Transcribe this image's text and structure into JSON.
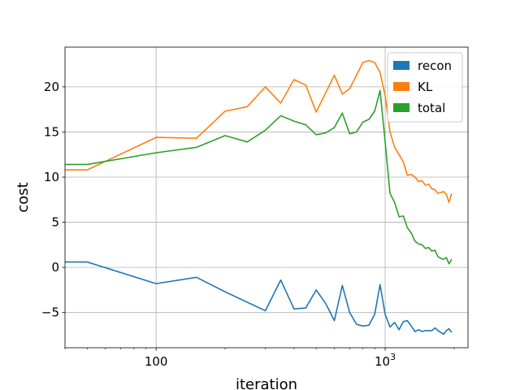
{
  "chart_data": {
    "type": "line",
    "xlabel": "iteration",
    "ylabel": "cost",
    "xscale": "log",
    "xlim": [
      40,
      2300
    ],
    "ylim": [
      -8.9,
      24.4
    ],
    "grid": true,
    "legend_position": "top-right",
    "x_ticks": [
      {
        "value": 100,
        "label": "100",
        "sup": ""
      },
      {
        "value": 1000,
        "label": "10",
        "sup": "3"
      }
    ],
    "y_ticks": [
      {
        "value": -5,
        "label": "−5"
      },
      {
        "value": 0,
        "label": "0"
      },
      {
        "value": 5,
        "label": "5"
      },
      {
        "value": 10,
        "label": "10"
      },
      {
        "value": 15,
        "label": "15"
      },
      {
        "value": 20,
        "label": "20"
      }
    ],
    "series": [
      {
        "name": "recon",
        "color": "#1f77b4",
        "points": [
          [
            40,
            0.6
          ],
          [
            50,
            0.6
          ],
          [
            100,
            -1.8
          ],
          [
            150,
            -1.1
          ],
          [
            200,
            -2.7
          ],
          [
            300,
            -4.8
          ],
          [
            350,
            -1.4
          ],
          [
            400,
            -4.6
          ],
          [
            450,
            -4.5
          ],
          [
            500,
            -2.5
          ],
          [
            550,
            -4.0
          ],
          [
            600,
            -5.9
          ],
          [
            650,
            -2.0
          ],
          [
            700,
            -5.0
          ],
          [
            750,
            -6.3
          ],
          [
            800,
            -6.5
          ],
          [
            850,
            -6.4
          ],
          [
            900,
            -5.2
          ],
          [
            950,
            -1.9
          ],
          [
            1000,
            -5.2
          ],
          [
            1050,
            -6.6
          ],
          [
            1100,
            -6.1
          ],
          [
            1150,
            -6.9
          ],
          [
            1200,
            -6.0
          ],
          [
            1250,
            -5.9
          ],
          [
            1300,
            -6.5
          ],
          [
            1350,
            -7.1
          ],
          [
            1400,
            -6.9
          ],
          [
            1450,
            -7.1
          ],
          [
            1500,
            -7.0
          ],
          [
            1600,
            -7.0
          ],
          [
            1650,
            -6.7
          ],
          [
            1700,
            -7.0
          ],
          [
            1800,
            -7.4
          ],
          [
            1850,
            -7.0
          ],
          [
            1900,
            -6.8
          ],
          [
            1950,
            -7.2
          ]
        ]
      },
      {
        "name": "KL",
        "color": "#ff7f0e",
        "points": [
          [
            40,
            10.8
          ],
          [
            50,
            10.8
          ],
          [
            100,
            14.4
          ],
          [
            150,
            14.3
          ],
          [
            200,
            17.3
          ],
          [
            250,
            17.8
          ],
          [
            300,
            20.0
          ],
          [
            350,
            18.2
          ],
          [
            400,
            20.8
          ],
          [
            450,
            20.2
          ],
          [
            500,
            17.2
          ],
          [
            600,
            21.3
          ],
          [
            650,
            19.2
          ],
          [
            700,
            19.8
          ],
          [
            800,
            22.7
          ],
          [
            850,
            22.9
          ],
          [
            900,
            22.7
          ],
          [
            950,
            21.6
          ],
          [
            1000,
            19.0
          ],
          [
            1050,
            15.0
          ],
          [
            1100,
            13.3
          ],
          [
            1150,
            12.5
          ],
          [
            1200,
            11.7
          ],
          [
            1250,
            10.2
          ],
          [
            1300,
            10.3
          ],
          [
            1350,
            10.0
          ],
          [
            1400,
            9.5
          ],
          [
            1450,
            9.6
          ],
          [
            1500,
            9.1
          ],
          [
            1550,
            9.2
          ],
          [
            1600,
            8.7
          ],
          [
            1650,
            8.6
          ],
          [
            1700,
            8.2
          ],
          [
            1750,
            8.3
          ],
          [
            1800,
            8.4
          ],
          [
            1850,
            8.1
          ],
          [
            1900,
            7.2
          ],
          [
            1950,
            8.2
          ]
        ]
      },
      {
        "name": "total",
        "color": "#2ca02c",
        "points": [
          [
            40,
            11.4
          ],
          [
            50,
            11.4
          ],
          [
            100,
            12.7
          ],
          [
            150,
            13.3
          ],
          [
            200,
            14.6
          ],
          [
            250,
            13.9
          ],
          [
            300,
            15.2
          ],
          [
            350,
            16.8
          ],
          [
            400,
            16.2
          ],
          [
            450,
            15.8
          ],
          [
            500,
            14.7
          ],
          [
            550,
            14.9
          ],
          [
            600,
            15.5
          ],
          [
            650,
            17.1
          ],
          [
            700,
            14.8
          ],
          [
            750,
            15.0
          ],
          [
            800,
            16.1
          ],
          [
            850,
            16.4
          ],
          [
            900,
            17.3
          ],
          [
            950,
            19.6
          ],
          [
            1000,
            13.9
          ],
          [
            1050,
            8.2
          ],
          [
            1100,
            7.2
          ],
          [
            1150,
            5.6
          ],
          [
            1200,
            5.7
          ],
          [
            1250,
            4.4
          ],
          [
            1300,
            3.8
          ],
          [
            1350,
            2.9
          ],
          [
            1400,
            2.6
          ],
          [
            1450,
            2.5
          ],
          [
            1500,
            2.1
          ],
          [
            1550,
            2.2
          ],
          [
            1600,
            1.8
          ],
          [
            1650,
            1.9
          ],
          [
            1700,
            1.2
          ],
          [
            1750,
            1.0
          ],
          [
            1800,
            0.9
          ],
          [
            1850,
            1.1
          ],
          [
            1900,
            0.4
          ],
          [
            1950,
            0.9
          ]
        ]
      }
    ]
  }
}
